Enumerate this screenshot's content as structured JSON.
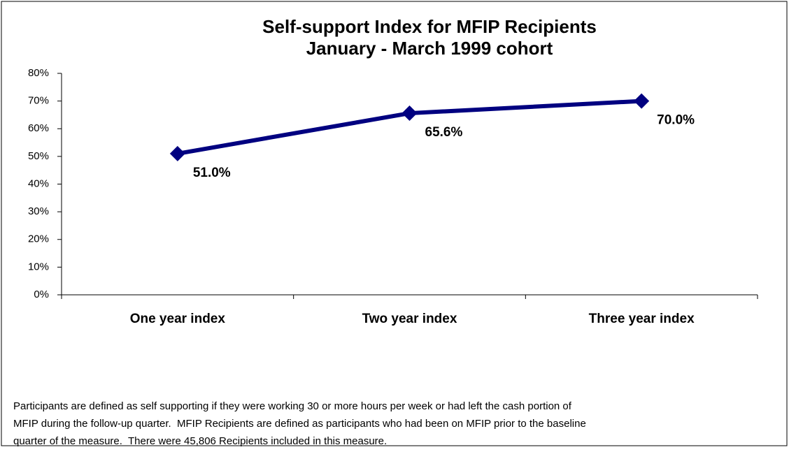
{
  "chart_data": {
    "type": "line",
    "title": "Self-support Index for MFIP Recipients",
    "subtitle": "January - March 1999 cohort",
    "categories": [
      "One year index",
      "Two year index",
      "Three year index"
    ],
    "series": [
      {
        "name": null,
        "color": "#000080",
        "values": [
          51.0,
          65.6,
          70.0
        ],
        "value_labels": [
          "51.0%",
          "65.6%",
          "70.0%"
        ]
      }
    ],
    "ylim": [
      0,
      80
    ],
    "yticks": [
      {
        "value": 0,
        "label": "0%"
      },
      {
        "value": 10,
        "label": "10%"
      },
      {
        "value": 20,
        "label": "20%"
      },
      {
        "value": 30,
        "label": "30%"
      },
      {
        "value": 40,
        "label": "40%"
      },
      {
        "value": 50,
        "label": "50%"
      },
      {
        "value": 60,
        "label": "60%"
      },
      {
        "value": 70,
        "label": "70%"
      },
      {
        "value": 80,
        "label": "80%"
      }
    ],
    "grid": false,
    "note": [
      "Participants are defined as self supporting if they were working 30 or more hours per week or had left the cash portion of",
      "MFIP during the follow-up quarter.  MFIP Recipients are defined as participants who had been on MFIP prior to the baseline",
      "quarter of the measure.  There were 45,806 Recipients included in this measure."
    ]
  }
}
